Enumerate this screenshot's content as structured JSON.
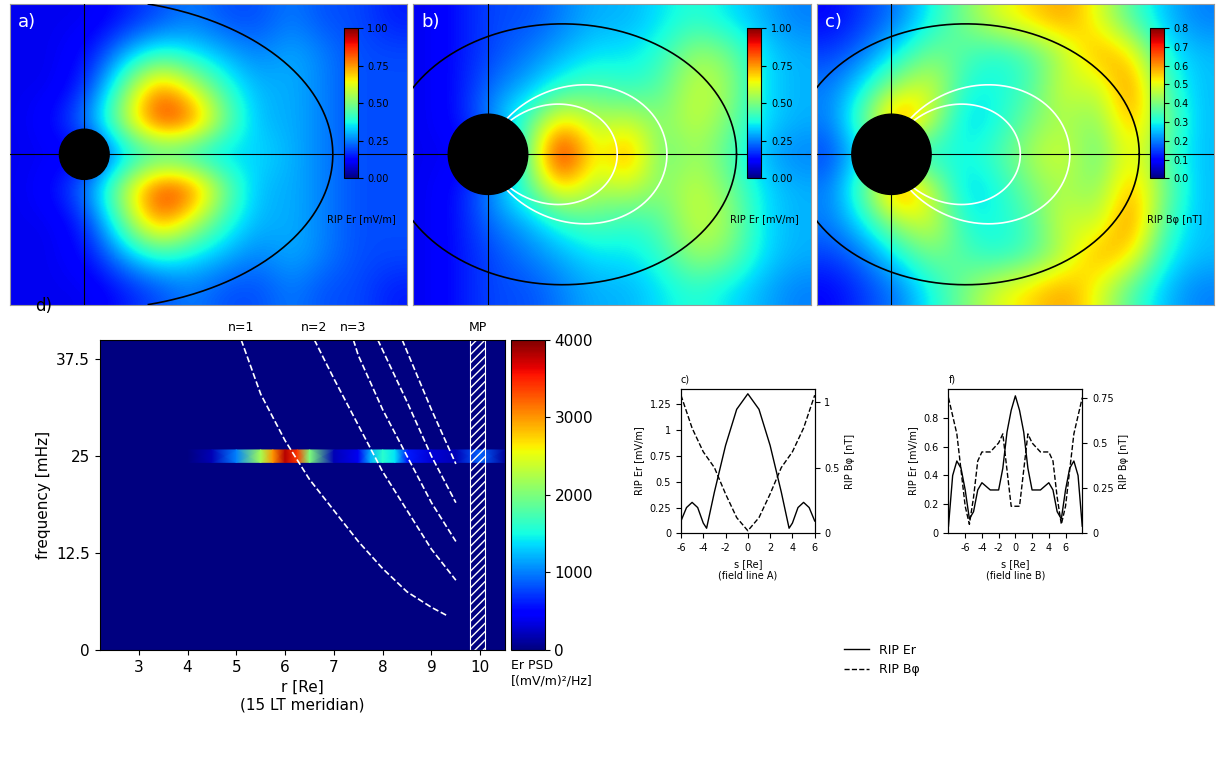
{
  "chart_data": [
    {
      "type": "heatmap",
      "title": "a)",
      "tick_labels": false,
      "xlim": [
        -3,
        13
      ],
      "ylim": [
        -6,
        6
      ],
      "cells": [
        [
          0.1,
          0.1,
          0.1,
          0.15,
          0.2,
          0.25,
          0.2,
          0.2,
          0.25,
          0.2,
          0.2,
          0.15
        ],
        [
          0.1,
          0.1,
          0.15,
          0.3,
          0.4,
          0.35,
          0.3,
          0.25,
          0.3,
          0.25,
          0.2,
          0.2
        ],
        [
          0.1,
          0.1,
          0.2,
          0.5,
          0.8,
          0.6,
          0.4,
          0.3,
          0.3,
          0.25,
          0.2,
          0.2
        ],
        [
          0.1,
          0.15,
          0.3,
          0.6,
          0.9,
          0.85,
          0.5,
          0.3,
          0.3,
          0.25,
          0.2,
          0.2
        ],
        [
          0.1,
          0.1,
          0.1,
          0.3,
          0.35,
          0.3,
          0.3,
          0.35,
          0.3,
          0.25,
          0.2,
          0.2
        ],
        [
          0.1,
          0.15,
          0.3,
          0.6,
          0.9,
          0.85,
          0.5,
          0.3,
          0.3,
          0.25,
          0.2,
          0.2
        ],
        [
          0.1,
          0.1,
          0.2,
          0.5,
          0.8,
          0.6,
          0.4,
          0.3,
          0.3,
          0.25,
          0.2,
          0.2
        ],
        [
          0.1,
          0.1,
          0.15,
          0.3,
          0.4,
          0.35,
          0.3,
          0.25,
          0.3,
          0.25,
          0.2,
          0.2
        ],
        [
          0.1,
          0.1,
          0.1,
          0.15,
          0.2,
          0.25,
          0.2,
          0.2,
          0.25,
          0.2,
          0.2,
          0.15
        ]
      ],
      "colorbar": {
        "label": "RIP Er [mV/m]",
        "range": [
          0,
          1
        ],
        "ticks": [
          {
            "value": 0,
            "label": "0.00"
          },
          {
            "value": 0.25,
            "label": "0.25"
          },
          {
            "value": 0.5,
            "label": "0.50"
          },
          {
            "value": 0.75,
            "label": "0.75"
          },
          {
            "value": 1,
            "label": "1.00"
          }
        ]
      }
    },
    {
      "type": "heatmap",
      "title": "b)",
      "tick_labels": false,
      "xlim": [
        -3,
        13
      ],
      "ylim": [
        -6,
        6
      ],
      "cells": [
        [
          0.1,
          0.15,
          0.2,
          0.2,
          0.25,
          0.3,
          0.3,
          0.35,
          0.4,
          0.35,
          0.3,
          0.25
        ],
        [
          0.1,
          0.15,
          0.2,
          0.25,
          0.3,
          0.35,
          0.35,
          0.4,
          0.55,
          0.5,
          0.35,
          0.3
        ],
        [
          0.1,
          0.15,
          0.25,
          0.3,
          0.4,
          0.45,
          0.4,
          0.45,
          0.6,
          0.55,
          0.35,
          0.3
        ],
        [
          0.1,
          0.15,
          0.3,
          0.45,
          0.7,
          0.55,
          0.6,
          0.5,
          0.6,
          0.5,
          0.35,
          0.3
        ],
        [
          0.1,
          0.1,
          0.1,
          0.5,
          1.0,
          0.6,
          0.8,
          0.45,
          0.55,
          0.45,
          0.3,
          0.25
        ],
        [
          0.1,
          0.15,
          0.3,
          0.45,
          0.7,
          0.55,
          0.6,
          0.5,
          0.6,
          0.5,
          0.35,
          0.3
        ],
        [
          0.1,
          0.15,
          0.25,
          0.3,
          0.4,
          0.45,
          0.4,
          0.45,
          0.6,
          0.55,
          0.35,
          0.3
        ],
        [
          0.1,
          0.15,
          0.2,
          0.25,
          0.3,
          0.35,
          0.35,
          0.4,
          0.55,
          0.5,
          0.35,
          0.3
        ],
        [
          0.1,
          0.15,
          0.2,
          0.2,
          0.25,
          0.3,
          0.3,
          0.35,
          0.4,
          0.35,
          0.3,
          0.25
        ]
      ],
      "colorbar": {
        "label": "RIP Er [mV/m]",
        "range": [
          0,
          1
        ],
        "ticks": [
          {
            "value": 0,
            "label": "0.00"
          },
          {
            "value": 0.25,
            "label": "0.25"
          },
          {
            "value": 0.5,
            "label": "0.50"
          },
          {
            "value": 0.75,
            "label": "0.75"
          },
          {
            "value": 1,
            "label": "1.00"
          }
        ]
      }
    },
    {
      "type": "heatmap",
      "title": "c)",
      "tick_labels": false,
      "xlim": [
        -3,
        13
      ],
      "ylim": [
        -6,
        6
      ],
      "cells": [
        [
          0.1,
          0.15,
          0.2,
          0.3,
          0.4,
          0.5,
          0.55,
          0.6,
          0.5,
          0.35,
          0.25,
          0.2
        ],
        [
          0.15,
          0.2,
          0.3,
          0.4,
          0.35,
          0.3,
          0.35,
          0.45,
          0.6,
          0.55,
          0.3,
          0.25
        ],
        [
          0.2,
          0.3,
          0.45,
          0.5,
          0.3,
          0.3,
          0.35,
          0.5,
          0.45,
          0.65,
          0.35,
          0.25
        ],
        [
          0.2,
          0.4,
          0.7,
          0.45,
          0.25,
          0.3,
          0.4,
          0.45,
          0.4,
          0.6,
          0.4,
          0.25
        ],
        [
          0.15,
          0.3,
          0.2,
          0.3,
          0.3,
          0.35,
          0.45,
          0.5,
          0.35,
          0.55,
          0.35,
          0.25
        ],
        [
          0.2,
          0.4,
          0.7,
          0.45,
          0.25,
          0.3,
          0.4,
          0.45,
          0.4,
          0.6,
          0.4,
          0.25
        ],
        [
          0.2,
          0.3,
          0.45,
          0.5,
          0.3,
          0.3,
          0.35,
          0.5,
          0.45,
          0.65,
          0.35,
          0.25
        ],
        [
          0.15,
          0.2,
          0.3,
          0.4,
          0.35,
          0.3,
          0.35,
          0.45,
          0.6,
          0.55,
          0.3,
          0.25
        ],
        [
          0.1,
          0.15,
          0.2,
          0.3,
          0.4,
          0.5,
          0.55,
          0.6,
          0.5,
          0.35,
          0.25,
          0.2
        ]
      ],
      "colorbar": {
        "label": "RIP Bφ [nT]",
        "range": [
          0,
          0.8
        ],
        "ticks": [
          {
            "value": 0,
            "label": "0.0"
          },
          0.1,
          0.2,
          0.3,
          0.4,
          0.5,
          0.6,
          0.7,
          0.8
        ]
      }
    },
    {
      "type": "spectrogram",
      "title": "d)",
      "x_label": "r [Re]\n(15 LT meridian)",
      "y_label": "frequency [mHz]",
      "xlim": [
        2.2,
        10.5
      ],
      "xticks": [
        3,
        4,
        5,
        6,
        7,
        8,
        9,
        10
      ],
      "ylim": [
        0,
        40
      ],
      "yticks": [
        0,
        12.5,
        25,
        37.5
      ],
      "signal": {
        "band": [
          24.2,
          25.8
        ],
        "r": [
          4.0,
          4.5,
          5.0,
          5.5,
          5.75,
          6.0,
          6.25,
          6.5,
          7.0,
          7.5,
          7.75,
          8.0,
          8.25,
          8.5,
          9.0,
          9.5,
          10.0,
          10.5
        ],
        "psd": [
          0,
          200,
          1000,
          2200,
          3000,
          3800,
          3400,
          2000,
          200,
          400,
          1200,
          1600,
          1400,
          600,
          300,
          200,
          900,
          100
        ]
      },
      "series": [
        {
          "name": "n=1",
          "color": "#ffffff",
          "line_style": "dashed",
          "r": [
            5.1,
            5.5,
            6.0,
            6.5,
            7.0,
            7.5,
            8.0,
            8.5,
            9.0,
            9.3
          ],
          "frequency": [
            40,
            33,
            27,
            22,
            18,
            14,
            10.5,
            7.5,
            5.5,
            4.5
          ]
        },
        {
          "name": "n=2",
          "color": "#ffffff",
          "line_style": "dashed",
          "r": [
            6.6,
            7.0,
            7.5,
            8.0,
            8.5,
            9.0,
            9.5
          ],
          "frequency": [
            40,
            35,
            29,
            23,
            18,
            13,
            9
          ]
        },
        {
          "name": "n=3",
          "color": "#ffffff",
          "line_style": "dashed",
          "r": [
            7.4,
            7.5,
            8.0,
            8.5,
            9.0,
            9.5
          ],
          "frequency": [
            40,
            38,
            31,
            25,
            19,
            14
          ]
        },
        {
          "name": null,
          "color": "#ffffff",
          "line_style": "dashed",
          "r": [
            7.9,
            8.5,
            9.0,
            9.5
          ],
          "frequency": [
            40,
            32,
            25,
            19
          ]
        },
        {
          "name": null,
          "color": "#ffffff",
          "line_style": "dashed",
          "r": [
            8.4,
            9.0,
            9.5
          ],
          "frequency": [
            40,
            31,
            24
          ]
        }
      ],
      "magnetopause": {
        "label": "MP",
        "range": [
          9.8,
          10.1
        ]
      },
      "colorbar": {
        "label": "Er PSD\n[(mV/m)²/Hz]",
        "range": [
          0,
          4000
        ],
        "ticks": [
          0,
          1000,
          2000,
          3000,
          4000
        ]
      }
    },
    {
      "type": "line",
      "title": "c)",
      "x_label": "s [Re]\n(field line A)",
      "y_label": "RIP Er [mV/m]",
      "y2_label": "RIP Bφ [nT]",
      "xlim": [
        -6,
        6
      ],
      "xticks": [
        -6,
        -4,
        -2,
        0,
        2,
        4,
        6
      ],
      "ylim": [
        0,
        1.4
      ],
      "yticks": [
        0,
        0.25,
        0.5,
        0.75,
        1,
        1.25
      ],
      "y2lim": [
        0,
        1.1
      ],
      "y2ticks": [
        0,
        0.5,
        1
      ],
      "series": [
        {
          "name": "RIP Er",
          "color": "#000000",
          "line_style": "solid",
          "x": [
            -6,
            -5.5,
            -5,
            -4.5,
            -4,
            -3.7,
            -3.5,
            -3,
            -2,
            -1,
            0,
            1,
            2,
            3,
            3.5,
            3.7,
            4,
            4.5,
            5,
            5.5,
            6
          ],
          "values": [
            0.12,
            0.25,
            0.3,
            0.25,
            0.1,
            0.05,
            0.15,
            0.4,
            0.85,
            1.2,
            1.35,
            1.2,
            0.85,
            0.4,
            0.15,
            0.05,
            0.1,
            0.25,
            0.3,
            0.25,
            0.12
          ]
        },
        {
          "name": "RIP Bφ",
          "color": "#000000",
          "line_style": "dashed",
          "axis": "y2",
          "x": [
            -6,
            -5,
            -4,
            -3,
            -2,
            -1,
            0,
            1,
            2,
            3,
            4,
            5,
            6
          ],
          "values": [
            1.05,
            0.8,
            0.62,
            0.5,
            0.3,
            0.12,
            0.02,
            0.12,
            0.3,
            0.5,
            0.62,
            0.8,
            1.05
          ]
        }
      ]
    },
    {
      "type": "line",
      "title": "f)",
      "legend": "upper center",
      "x_label": "s [Re]\n(field line B)",
      "y_label": "RIP Er [mV/m]",
      "y2_label": "RIP Bφ [nT]",
      "xlim": [
        -8,
        8
      ],
      "xticks": [
        -6,
        -4,
        -2,
        0,
        2,
        4,
        6
      ],
      "ylim": [
        0,
        1.0
      ],
      "yticks": [
        0,
        0.2,
        0.4,
        0.6,
        0.8
      ],
      "y2lim": [
        0,
        0.8
      ],
      "y2ticks": [
        0,
        0.25,
        0.5,
        0.75
      ],
      "series": [
        {
          "name": "RIP Er",
          "color": "#000000",
          "line_style": "solid",
          "x": [
            -8,
            -7.5,
            -7,
            -6.5,
            -6,
            -5.5,
            -5,
            -4.5,
            -4,
            -3,
            -2,
            -1.5,
            -1,
            -0.5,
            0,
            0.5,
            1,
            1.5,
            2,
            3,
            4,
            4.5,
            5,
            5.5,
            6,
            6.5,
            7,
            7.5,
            8
          ],
          "values": [
            0.05,
            0.4,
            0.5,
            0.45,
            0.3,
            0.1,
            0.15,
            0.3,
            0.35,
            0.3,
            0.3,
            0.45,
            0.7,
            0.85,
            0.95,
            0.85,
            0.7,
            0.45,
            0.3,
            0.3,
            0.35,
            0.3,
            0.15,
            0.1,
            0.3,
            0.45,
            0.5,
            0.4,
            0.05
          ]
        },
        {
          "name": "RIP Bφ",
          "color": "#000000",
          "line_style": "dashed",
          "axis": "y2",
          "x": [
            -8,
            -7.5,
            -7,
            -6.5,
            -6,
            -5.5,
            -5,
            -4.5,
            -4,
            -3,
            -2,
            -1.5,
            -1,
            -0.5,
            0,
            0.5,
            1,
            1.5,
            2,
            3,
            4,
            4.5,
            5,
            5.5,
            6,
            6.5,
            7,
            7.5,
            8
          ],
          "values": [
            0.75,
            0.65,
            0.55,
            0.35,
            0.15,
            0.05,
            0.2,
            0.4,
            0.45,
            0.45,
            0.5,
            0.55,
            0.35,
            0.15,
            0.15,
            0.15,
            0.35,
            0.55,
            0.5,
            0.45,
            0.45,
            0.4,
            0.2,
            0.05,
            0.15,
            0.35,
            0.55,
            0.65,
            0.75
          ]
        }
      ]
    }
  ]
}
